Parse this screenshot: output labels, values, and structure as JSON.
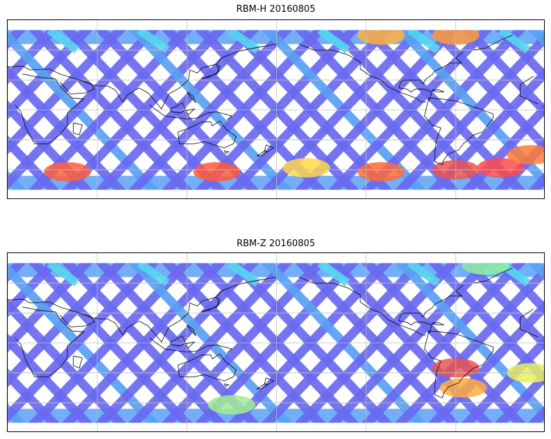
{
  "panels": [
    {
      "title": "RBM-H 20160805",
      "hotspots": [
        {
          "lon": 140,
          "lat": -62,
          "color": "#ff5a3c"
        },
        {
          "lon": 250,
          "lat": -62,
          "color": "#ff6a3a"
        },
        {
          "lon": 300,
          "lat": -60,
          "color": "#e85550"
        },
        {
          "lon": 330,
          "lat": -58,
          "color": "#ff4a4a"
        },
        {
          "lon": 350,
          "lat": -45,
          "color": "#ff7a3a"
        },
        {
          "lon": 300,
          "lat": 75,
          "color": "#ff9a3a"
        },
        {
          "lon": 250,
          "lat": 75,
          "color": "#ffb040"
        },
        {
          "lon": 40,
          "lat": -62,
          "color": "#ff6040"
        },
        {
          "lon": 200,
          "lat": -58,
          "color": "#ffd84a"
        }
      ]
    },
    {
      "title": "RBM-Z 20160805",
      "hotspots": [
        {
          "lon": 300,
          "lat": -25,
          "color": "#e85550"
        },
        {
          "lon": 305,
          "lat": -45,
          "color": "#ffaa40"
        },
        {
          "lon": 350,
          "lat": -30,
          "color": "#e8f060"
        },
        {
          "lon": 320,
          "lat": 78,
          "color": "#8ff0a0"
        },
        {
          "lon": 150,
          "lat": -62,
          "color": "#9ef090"
        }
      ]
    }
  ],
  "colors": {
    "track_main": "#6a6af0",
    "track_light": "#5aa0f5",
    "track_cyan": "#55d8f0",
    "coast": "#000000",
    "grid": "#bfbfbf"
  }
}
